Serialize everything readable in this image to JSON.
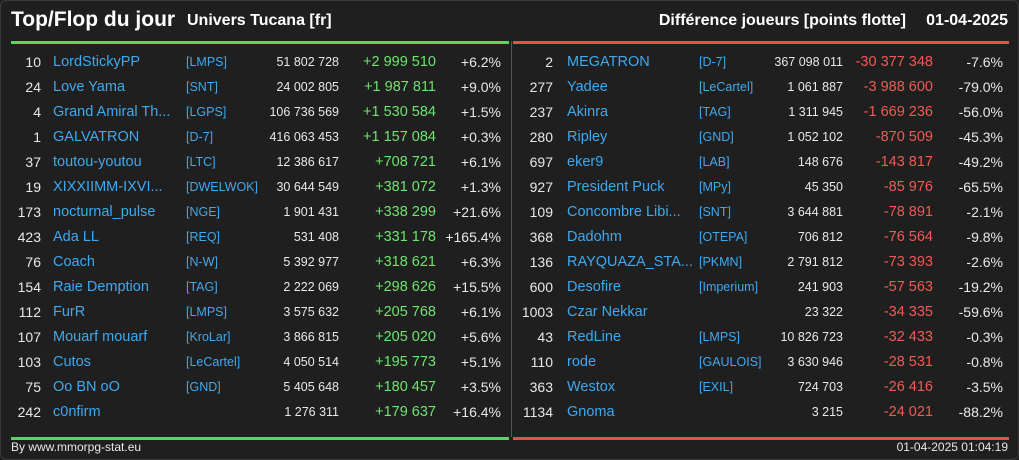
{
  "header": {
    "title": "Top/Flop du jour",
    "universe": "Univers Tucana [fr]",
    "metric": "Différence joueurs [points flotte]",
    "date": "01-04-2025"
  },
  "top": [
    {
      "rank": "10",
      "name": "LordStickyPP",
      "tag": "[LMPS]",
      "points": "51 802 728",
      "diff": "+2 999 510",
      "pct": "+6.2%"
    },
    {
      "rank": "24",
      "name": "Love Yama",
      "tag": "[SNT]",
      "points": "24 002 805",
      "diff": "+1 987 811",
      "pct": "+9.0%"
    },
    {
      "rank": "4",
      "name": "Grand Amiral Th...",
      "tag": "[LGPS]",
      "points": "106 736 569",
      "diff": "+1 530 584",
      "pct": "+1.5%"
    },
    {
      "rank": "1",
      "name": "GALVATRON",
      "tag": "[D-7]",
      "points": "416 063 453",
      "diff": "+1 157 084",
      "pct": "+0.3%"
    },
    {
      "rank": "37",
      "name": "toutou-youtou",
      "tag": "[LTC]",
      "points": "12 386 617",
      "diff": "+708 721",
      "pct": "+6.1%"
    },
    {
      "rank": "19",
      "name": "XIXXIIMM-IXVI...",
      "tag": "[DWELWOK]",
      "points": "30 644 549",
      "diff": "+381 072",
      "pct": "+1.3%"
    },
    {
      "rank": "173",
      "name": "nocturnal_pulse",
      "tag": "[NGE]",
      "points": "1 901 431",
      "diff": "+338 299",
      "pct": "+21.6%"
    },
    {
      "rank": "423",
      "name": "Ada LL",
      "tag": "[REQ]",
      "points": "531 408",
      "diff": "+331 178",
      "pct": "+165.4%"
    },
    {
      "rank": "76",
      "name": "Coach",
      "tag": "[N-W]",
      "points": "5 392 977",
      "diff": "+318 621",
      "pct": "+6.3%"
    },
    {
      "rank": "154",
      "name": "Raie Demption",
      "tag": "[TAG]",
      "points": "2 222 069",
      "diff": "+298 626",
      "pct": "+15.5%"
    },
    {
      "rank": "112",
      "name": "FurR",
      "tag": "[LMPS]",
      "points": "3 575 632",
      "diff": "+205 768",
      "pct": "+6.1%"
    },
    {
      "rank": "107",
      "name": "Mouarf mouarf",
      "tag": "[KroLar]",
      "points": "3 866 815",
      "diff": "+205 020",
      "pct": "+5.6%"
    },
    {
      "rank": "103",
      "name": "Cutos",
      "tag": "[LeCartel]",
      "points": "4 050 514",
      "diff": "+195 773",
      "pct": "+5.1%"
    },
    {
      "rank": "75",
      "name": "Oo BN oO",
      "tag": "[GND]",
      "points": "5 405 648",
      "diff": "+180 457",
      "pct": "+3.5%"
    },
    {
      "rank": "242",
      "name": "c0nfirm",
      "tag": "",
      "points": "1 276 311",
      "diff": "+179 637",
      "pct": "+16.4%"
    }
  ],
  "flop": [
    {
      "rank": "2",
      "name": "MEGATRON",
      "tag": "[D-7]",
      "points": "367 098 011",
      "diff": "-30 377 348",
      "pct": "-7.6%"
    },
    {
      "rank": "277",
      "name": "Yadee",
      "tag": "[LeCartel]",
      "points": "1 061 887",
      "diff": "-3 988 600",
      "pct": "-79.0%"
    },
    {
      "rank": "237",
      "name": "Akinra",
      "tag": "[TAG]",
      "points": "1 311 945",
      "diff": "-1 669 236",
      "pct": "-56.0%"
    },
    {
      "rank": "280",
      "name": "Ripley",
      "tag": "[GND]",
      "points": "1 052 102",
      "diff": "-870 509",
      "pct": "-45.3%"
    },
    {
      "rank": "697",
      "name": "eker9",
      "tag": "[LAB]",
      "points": "148 676",
      "diff": "-143 817",
      "pct": "-49.2%"
    },
    {
      "rank": "927",
      "name": "President Puck",
      "tag": "[MPy]",
      "points": "45 350",
      "diff": "-85 976",
      "pct": "-65.5%"
    },
    {
      "rank": "109",
      "name": "Concombre Libi...",
      "tag": "[SNT]",
      "points": "3 644 881",
      "diff": "-78 891",
      "pct": "-2.1%"
    },
    {
      "rank": "368",
      "name": "Dadohm",
      "tag": "[OTEPA]",
      "points": "706 812",
      "diff": "-76 564",
      "pct": "-9.8%"
    },
    {
      "rank": "136",
      "name": "RAYQUAZA_STA...",
      "tag": "[PKMN]",
      "points": "2 791 812",
      "diff": "-73 393",
      "pct": "-2.6%"
    },
    {
      "rank": "600",
      "name": "Desofire",
      "tag": "[Imperium]",
      "points": "241 903",
      "diff": "-57 563",
      "pct": "-19.2%"
    },
    {
      "rank": "1003",
      "name": "Czar Nekkar",
      "tag": "",
      "points": "23 322",
      "diff": "-34 335",
      "pct": "-59.6%"
    },
    {
      "rank": "43",
      "name": "RedLine",
      "tag": "[LMPS]",
      "points": "10 826 723",
      "diff": "-32 433",
      "pct": "-0.3%"
    },
    {
      "rank": "110",
      "name": "rode",
      "tag": "[GAULOIS]",
      "points": "3 630 946",
      "diff": "-28 531",
      "pct": "-0.8%"
    },
    {
      "rank": "363",
      "name": "Westox",
      "tag": "[EXIL]",
      "points": "724 703",
      "diff": "-26 416",
      "pct": "-3.5%"
    },
    {
      "rank": "1134",
      "name": "Gnoma",
      "tag": "",
      "points": "3 215",
      "diff": "-24 021",
      "pct": "-88.2%"
    }
  ],
  "footer": {
    "source": "By www.mmorpg-stat.eu",
    "timestamp": "01-04-2025 01:04:19"
  },
  "colors": {
    "background": "#1e1e1e",
    "link": "#3fa9ef",
    "positive": "#6fe36f",
    "negative": "#ef5b52",
    "top_rule": "#5dd35d",
    "flop_rule": "#e2524a"
  }
}
